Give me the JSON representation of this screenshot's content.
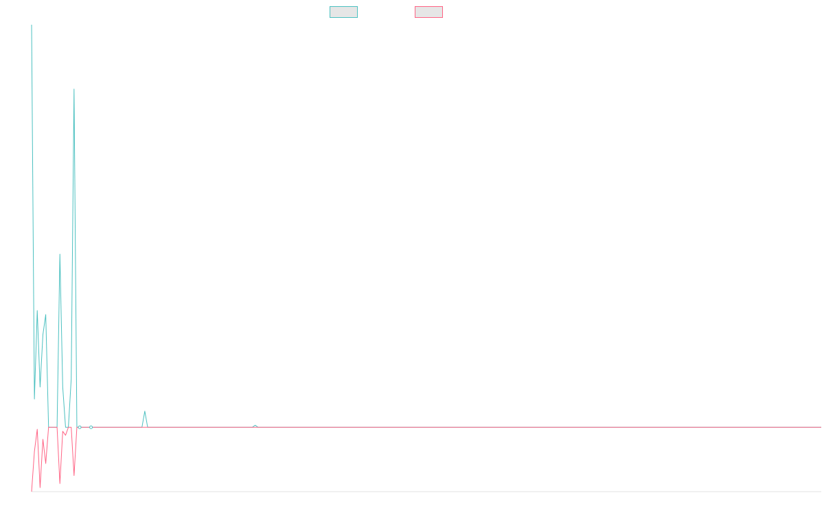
{
  "chart_data": {
    "type": "line",
    "title": "",
    "xlabel": "",
    "ylabel": "",
    "legend": {
      "placement": "top-center",
      "entries": 2
    },
    "grid": false,
    "ylim": [
      -16,
      100
    ],
    "point_count": 280,
    "series": [
      {
        "color": "#4bc0c0",
        "values": [
          100,
          7,
          29,
          10,
          23,
          28,
          0,
          0,
          0,
          0,
          43,
          10,
          0,
          0,
          12,
          84,
          0,
          0,
          0,
          0,
          0,
          0,
          0,
          0,
          0,
          0,
          0,
          0,
          0,
          0,
          0,
          0,
          0,
          0,
          0,
          0,
          0,
          0,
          0,
          0,
          4,
          0,
          0,
          0,
          0,
          0,
          0,
          0,
          0,
          0,
          0,
          0,
          0,
          0,
          0,
          0,
          0,
          0,
          0,
          0,
          0,
          0,
          0,
          0,
          0,
          0,
          0,
          0,
          0,
          0,
          0,
          0,
          0,
          0,
          0,
          0,
          0,
          0,
          0,
          0.5,
          0
        ]
      },
      {
        "color": "#ff6384",
        "values": [
          -16,
          -6,
          -0.5,
          -15,
          -3,
          -9,
          0,
          0,
          0,
          0,
          -14,
          -1,
          -2,
          0,
          0,
          -12,
          0,
          0,
          0,
          0,
          0,
          0,
          0,
          0,
          0,
          0,
          0,
          0,
          0,
          0,
          0,
          0,
          0,
          0,
          0,
          0,
          0,
          0,
          0,
          0,
          0
        ]
      }
    ]
  },
  "colors": {
    "series1": "#4bc0c0",
    "series2": "#ff6384",
    "legend_fill": "#e6e6e6",
    "axis": "#e0e0e0"
  }
}
